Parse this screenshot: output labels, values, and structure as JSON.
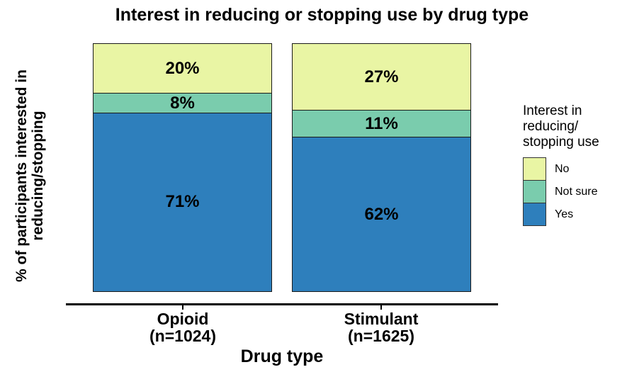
{
  "title": "Interest in reducing or stopping use by drug type",
  "axes": {
    "x_title": "Drug type",
    "y_title_lines": [
      "% of participants interested in",
      "reducing/stopping"
    ]
  },
  "legend": {
    "title_lines": [
      "Interest in",
      "reducing/",
      "stopping use"
    ],
    "items": [
      {
        "label": "No",
        "color": "#e9f5a4"
      },
      {
        "label": "Not sure",
        "color": "#7accad"
      },
      {
        "label": "Yes",
        "color": "#2e7fbc"
      }
    ]
  },
  "chart_data": {
    "type": "bar",
    "stacked": true,
    "percent": true,
    "title": "Interest in reducing or stopping use by drug type",
    "xlabel": "Drug type",
    "ylabel": "% of participants interested in reducing/stopping",
    "categories": [
      "Opioid (n=1024)",
      "Stimulant (n=1625)"
    ],
    "category_lines": [
      [
        "Opioid",
        "(n=1024)"
      ],
      [
        "Stimulant",
        "(n=1625)"
      ]
    ],
    "series": [
      {
        "name": "No",
        "color": "#e9f5a4",
        "values": [
          20,
          27
        ],
        "labels": [
          "20%",
          "27%"
        ]
      },
      {
        "name": "Not sure",
        "color": "#7accad",
        "values": [
          8,
          11
        ],
        "labels": [
          "8%",
          "11%"
        ]
      },
      {
        "name": "Yes",
        "color": "#2e7fbc",
        "values": [
          71,
          62
        ],
        "labels": [
          "71%",
          "62%"
        ]
      }
    ],
    "ylim": [
      0,
      100
    ],
    "legend_title": "Interest in reducing/ stopping use",
    "legend_position": "right",
    "grid": false
  }
}
